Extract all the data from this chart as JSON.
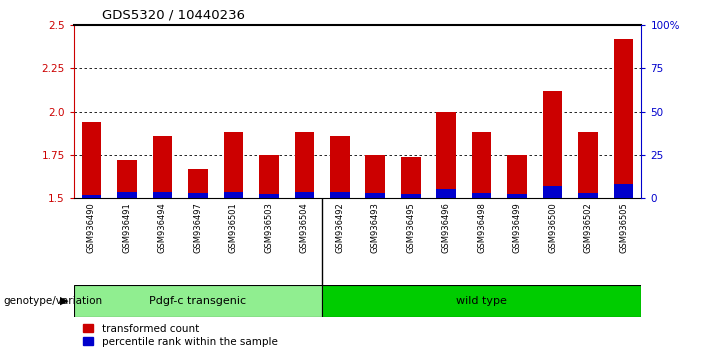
{
  "title": "GDS5320 / 10440236",
  "samples": [
    "GSM936490",
    "GSM936491",
    "GSM936494",
    "GSM936497",
    "GSM936501",
    "GSM936503",
    "GSM936504",
    "GSM936492",
    "GSM936493",
    "GSM936495",
    "GSM936496",
    "GSM936498",
    "GSM936499",
    "GSM936500",
    "GSM936502",
    "GSM936505"
  ],
  "red_values": [
    1.94,
    1.72,
    1.86,
    1.67,
    1.88,
    1.75,
    1.88,
    1.86,
    1.75,
    1.74,
    2.0,
    1.88,
    1.75,
    2.12,
    1.88,
    2.42
  ],
  "blue_percentiles": [
    2.0,
    3.5,
    3.5,
    3.0,
    3.5,
    2.5,
    3.5,
    3.5,
    3.0,
    2.5,
    5.5,
    3.0,
    2.5,
    7.0,
    3.0,
    8.0
  ],
  "group1_label": "Pdgf-c transgenic",
  "group2_label": "wild type",
  "group1_count": 7,
  "group2_count": 9,
  "genotype_label": "genotype/variation",
  "legend_red": "transformed count",
  "legend_blue": "percentile rank within the sample",
  "ymin": 1.5,
  "ymax": 2.5,
  "yticks": [
    1.5,
    1.75,
    2.0,
    2.25,
    2.5
  ],
  "right_yticks": [
    0,
    25,
    50,
    75,
    100
  ],
  "right_yticklabels": [
    "0",
    "25",
    "50",
    "75",
    "100%"
  ],
  "grid_lines": [
    1.75,
    2.0,
    2.25
  ],
  "bar_width": 0.55,
  "red_color": "#cc0000",
  "blue_color": "#0000cc",
  "group1_color": "#90ee90",
  "group2_color": "#00cc00",
  "xticklabel_bg": "#c8c8c8"
}
